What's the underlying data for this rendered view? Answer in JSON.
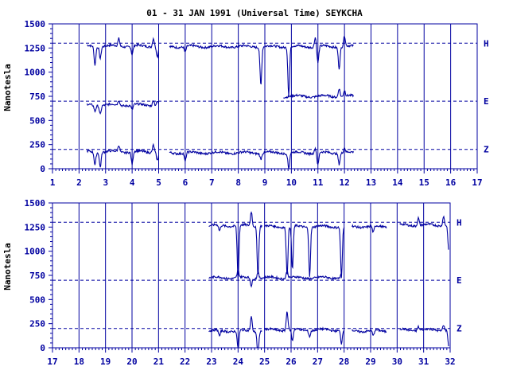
{
  "colors": {
    "ink": "#0000a0",
    "trace": "#0000a0",
    "background": "#ffffff"
  },
  "chart_data": {
    "type": "line",
    "title": "01 - 31 JAN 1991 (Universal Time) SEYKCHA",
    "ylabel": "Nanotesla",
    "ylim": [
      0,
      1500
    ],
    "yticks": [
      "0",
      "250",
      "500",
      "750",
      "1000",
      "1250",
      "1500"
    ],
    "grid": "vertical day lines + dashed baselines",
    "baselines": [
      {
        "name": "H",
        "value": 1300
      },
      {
        "name": "E",
        "value": 700
      },
      {
        "name": "Z",
        "value": 200
      }
    ],
    "panels": [
      {
        "xlim": [
          1,
          17
        ],
        "xticks": [
          "1",
          "2",
          "3",
          "4",
          "5",
          "6",
          "7",
          "8",
          "9",
          "10",
          "11",
          "12",
          "13",
          "14",
          "15",
          "16",
          "17"
        ],
        "segments": [
          {
            "x0": 2.3,
            "x1": 5.0,
            "H": 1270,
            "E": 660,
            "Z": 175
          },
          {
            "x0": 5.4,
            "x1": 12.35,
            "H": 1265,
            "Z": 165
          },
          {
            "x0": 9.7,
            "x1": 12.35,
            "E": 750
          }
        ],
        "events": [
          {
            "x": 2.6,
            "H": -190,
            "E": -60,
            "Z": -130
          },
          {
            "x": 2.8,
            "H": -120,
            "E": -90,
            "Z": -150
          },
          {
            "x": 3.5,
            "H": 80,
            "E": 50,
            "Z": 70
          },
          {
            "x": 4.0,
            "H": -90,
            "E": -50,
            "Z": -130
          },
          {
            "x": 4.8,
            "H": 90,
            "E": 60,
            "Z": 80
          },
          {
            "x": 4.95,
            "H": -110,
            "E": 40,
            "Z": -90
          },
          {
            "x": 6.0,
            "H": -60,
            "Z": -90
          },
          {
            "x": 8.85,
            "H": -400,
            "Z": -60
          },
          {
            "x": 9.9,
            "H": -500,
            "Z": -160
          },
          {
            "x": 10.9,
            "H": 100,
            "Z": 50
          },
          {
            "x": 11.0,
            "H": -170,
            "Z": -130
          },
          {
            "x": 11.8,
            "H": -220,
            "E": 90,
            "Z": -110
          },
          {
            "x": 12.0,
            "H": 110,
            "E": 60,
            "Z": 50
          }
        ]
      },
      {
        "xlim": [
          17,
          32
        ],
        "xticks": [
          "17",
          "18",
          "19",
          "20",
          "21",
          "22",
          "23",
          "24",
          "25",
          "26",
          "27",
          "28",
          "29",
          "30",
          "31",
          "32"
        ],
        "segments": [
          {
            "x0": 22.9,
            "x1": 24.9,
            "H": 1265,
            "Z": 175
          },
          {
            "x0": 25.0,
            "x1": 28.0,
            "H": 1255,
            "Z": 185
          },
          {
            "x0": 28.3,
            "x1": 29.6,
            "H": 1255,
            "Z": 175
          },
          {
            "x0": 30.1,
            "x1": 31.95,
            "H": 1270,
            "Z": 185
          },
          {
            "x0": 22.9,
            "x1": 27.9,
            "E": 725
          }
        ],
        "events": [
          {
            "x": 23.3,
            "H": -60,
            "Z": -60
          },
          {
            "x": 24.0,
            "H": -550,
            "E": 80,
            "Z": -200
          },
          {
            "x": 24.5,
            "H": 150,
            "E": -80,
            "Z": 150
          },
          {
            "x": 24.75,
            "H": -500,
            "E": 70,
            "Z": -250
          },
          {
            "x": 25.85,
            "H": -500,
            "E": 80,
            "Z": 200
          },
          {
            "x": 26.05,
            "H": -450,
            "Z": -120
          },
          {
            "x": 26.7,
            "H": -500,
            "Z": -60
          },
          {
            "x": 27.9,
            "H": -530,
            "E": 60,
            "Z": -140
          },
          {
            "x": 29.1,
            "H": -70,
            "Z": -60
          },
          {
            "x": 30.8,
            "H": 80,
            "Z": 40
          },
          {
            "x": 31.75,
            "H": 100,
            "Z": 60
          },
          {
            "x": 31.95,
            "H": -280,
            "Z": -180
          }
        ]
      }
    ]
  }
}
